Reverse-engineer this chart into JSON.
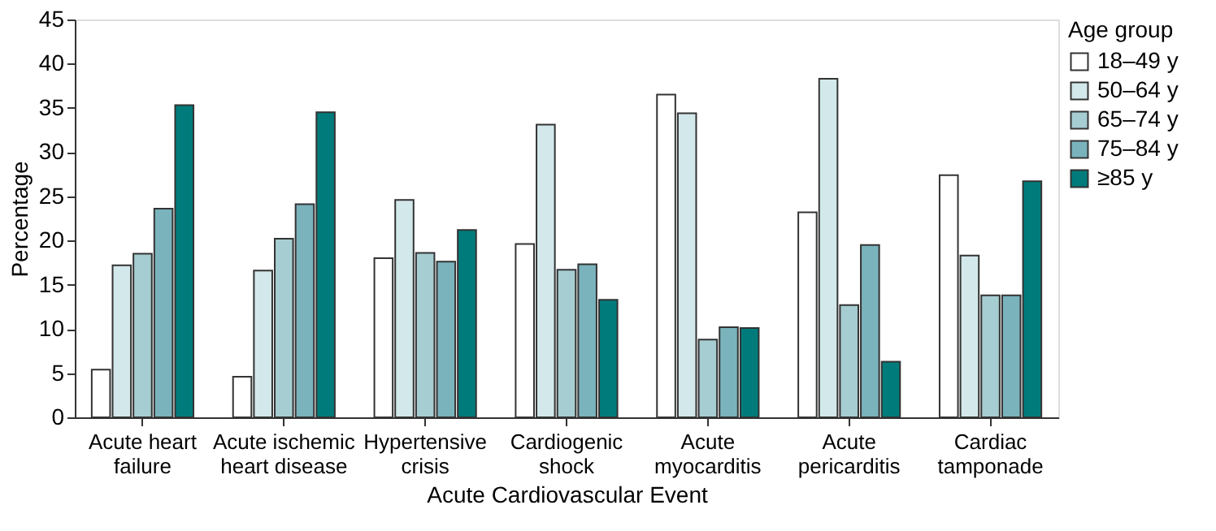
{
  "chart_data": {
    "type": "bar",
    "xlabel": "Acute Cardiovascular Event",
    "ylabel": "Percentage",
    "legend_title": "Age group",
    "categories": [
      "Acute heart failure",
      "Acute ischemic heart disease",
      "Hypertensive crisis",
      "Cardiogenic shock",
      "Acute myocarditis",
      "Acute pericarditis",
      "Cardiac tamponade"
    ],
    "series": [
      {
        "name": "18–49 y",
        "color": "#ffffff",
        "values": [
          5.4,
          4.6,
          18.0,
          19.6,
          36.5,
          23.2,
          27.4
        ]
      },
      {
        "name": "50–64 y",
        "color": "#d3e8ea",
        "values": [
          17.2,
          16.6,
          24.6,
          33.1,
          34.4,
          38.3,
          18.3
        ]
      },
      {
        "name": "65–74 y",
        "color": "#a6cdd2",
        "values": [
          18.5,
          20.2,
          18.6,
          16.7,
          8.8,
          12.7,
          13.8
        ]
      },
      {
        "name": "75–84 y",
        "color": "#7ab3bc",
        "values": [
          23.6,
          24.1,
          17.6,
          17.3,
          10.2,
          19.5,
          13.8
        ]
      },
      {
        "name": "≥85 y",
        "color": "#007b7b",
        "values": [
          35.3,
          34.5,
          21.2,
          13.3,
          10.1,
          6.3,
          26.7
        ]
      }
    ],
    "ylim": [
      0,
      45
    ],
    "yticks": [
      0,
      5,
      10,
      15,
      20,
      25,
      30,
      35,
      40,
      45
    ],
    "grid": false,
    "legend": "top right"
  }
}
